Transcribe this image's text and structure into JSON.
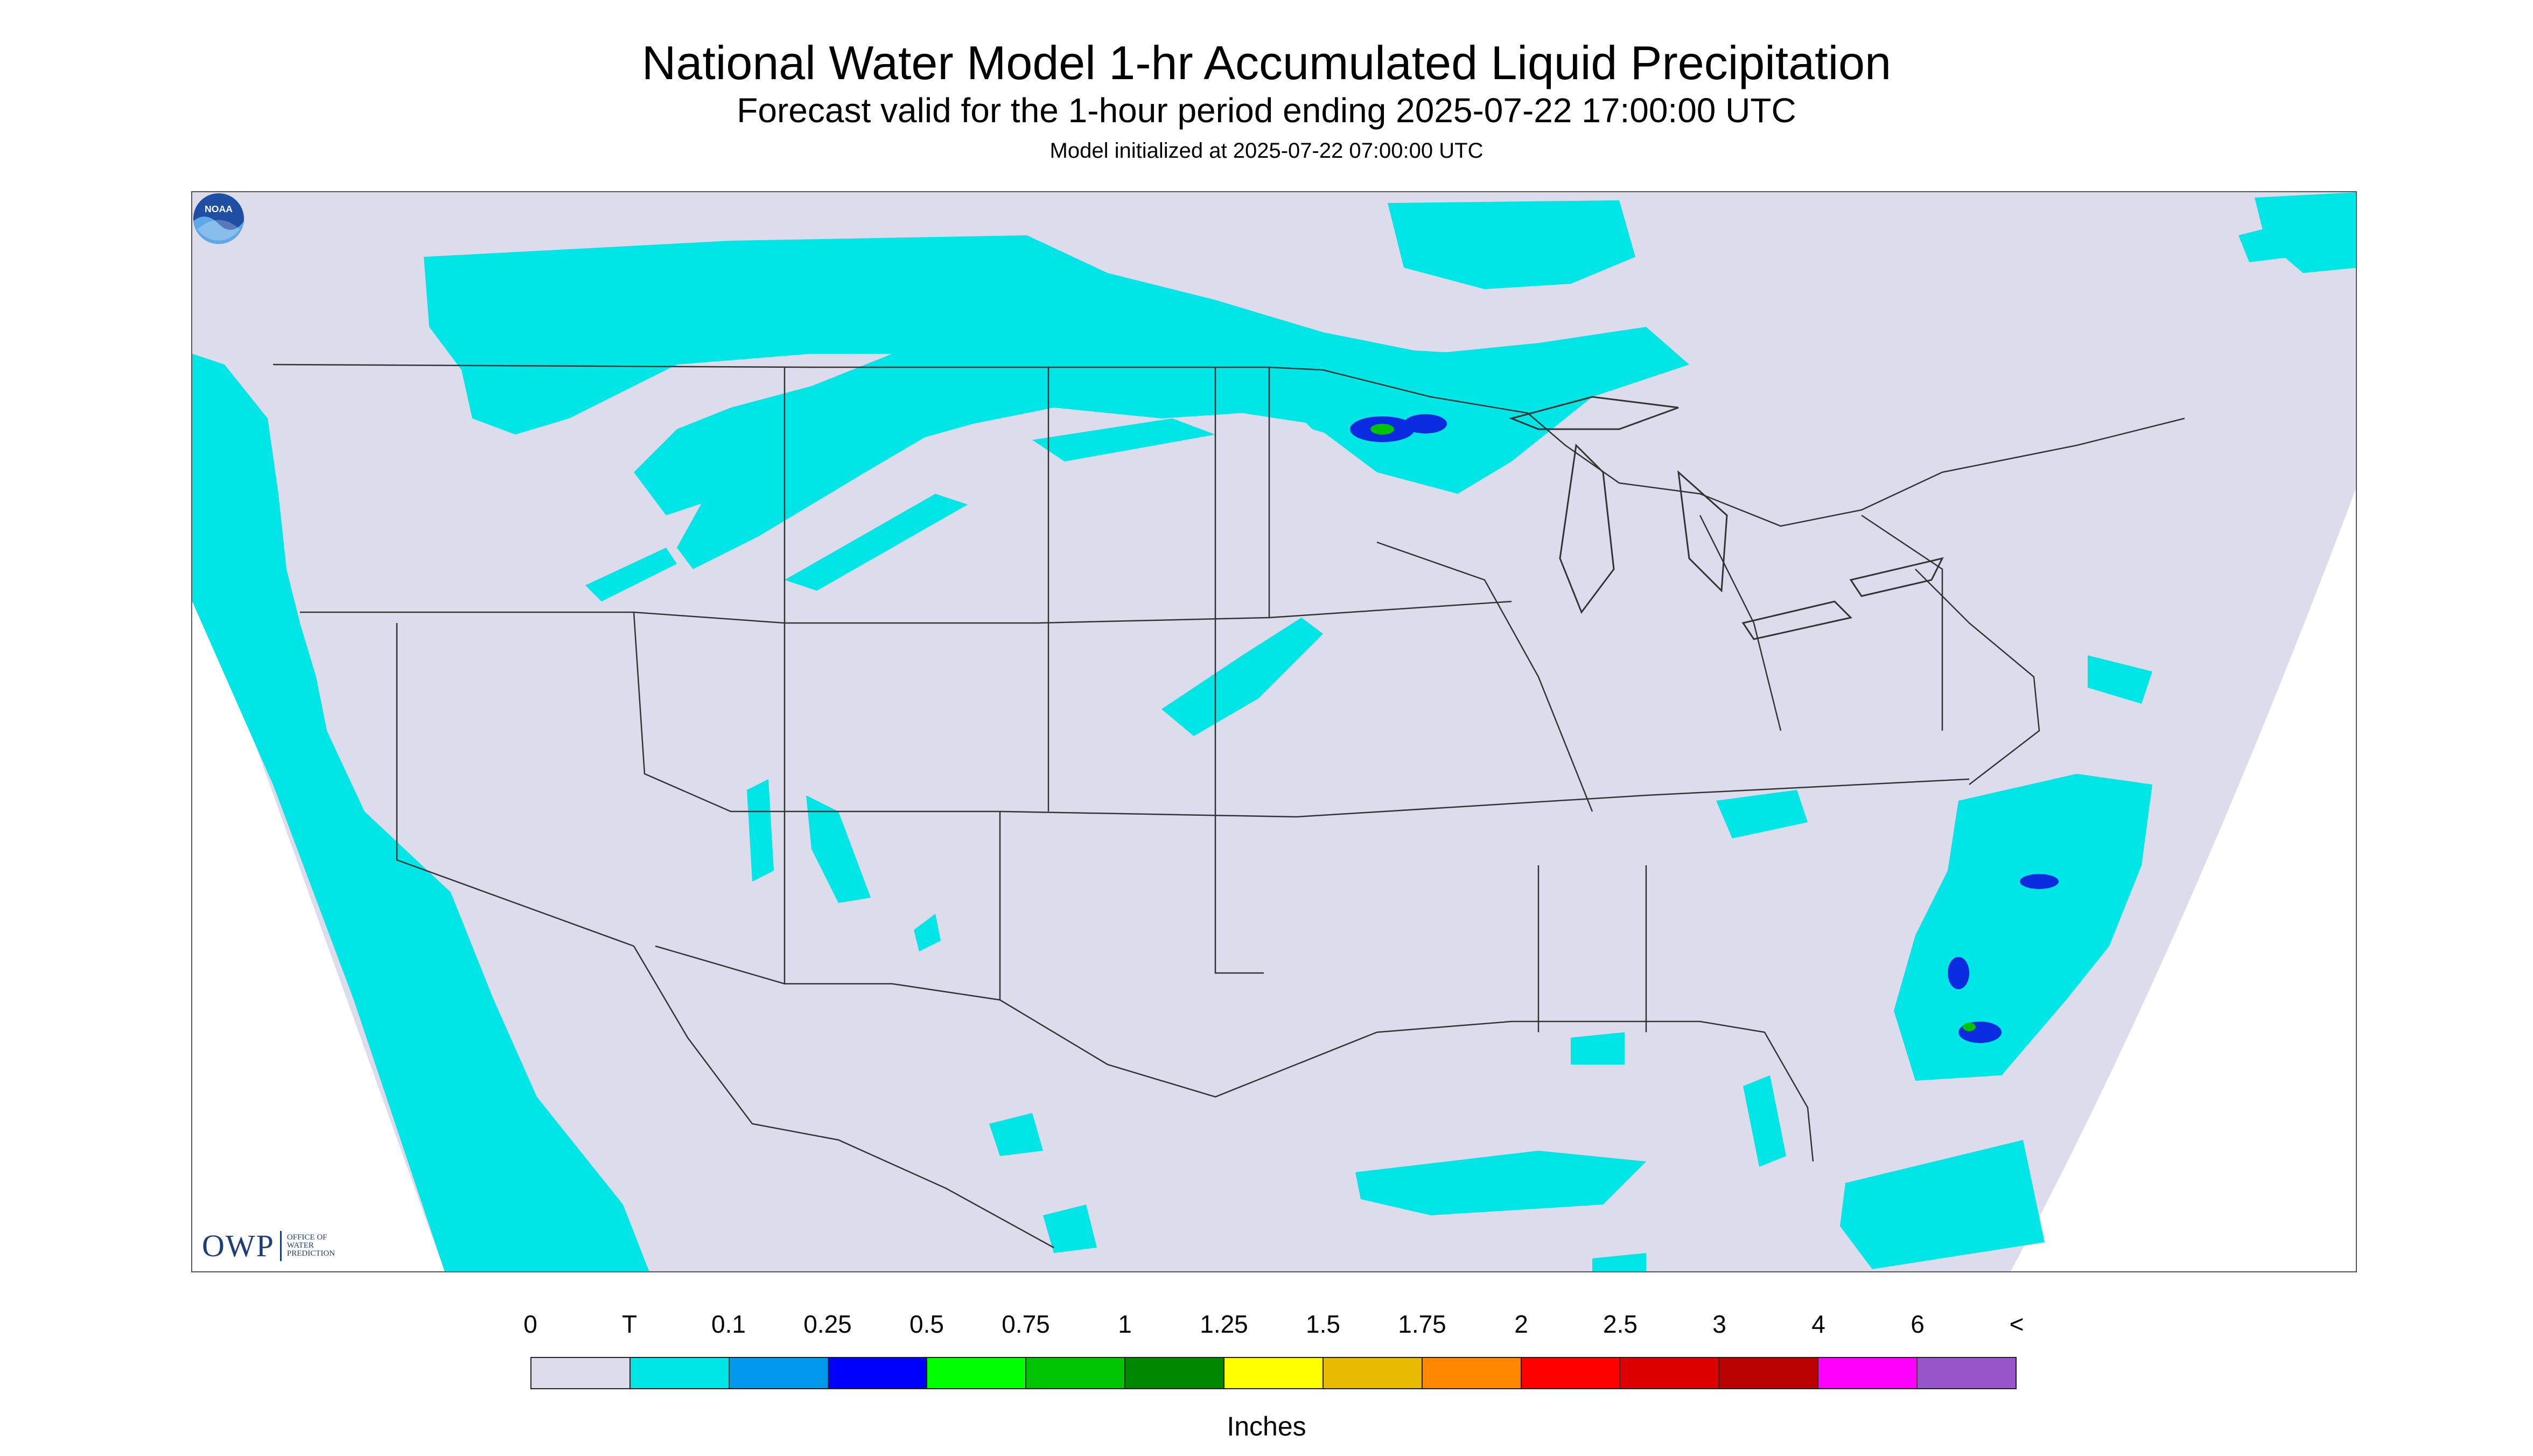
{
  "header": {
    "title": "National Water Model 1-hr Accumulated Liquid Precipitation",
    "subtitle": "Forecast valid for the 1-hour period ending 2025-07-22 17:00:00 UTC",
    "init": "Model initialized at 2025-07-22 07:00:00 UTC"
  },
  "map": {
    "background_color": "#dcdcec",
    "trace_color": "#00e5e5",
    "highlight_color": "#0a2bdf",
    "logo_left": {
      "main": "OWP",
      "lines": [
        "OFFICE OF",
        "WATER",
        "PREDICTION"
      ]
    },
    "logo_right": {
      "icon": "noaa-logo-icon",
      "text": "NOAA"
    }
  },
  "legend": {
    "labels": [
      "0",
      "T",
      "0.1",
      "0.25",
      "0.5",
      "0.75",
      "1",
      "1.25",
      "1.5",
      "1.75",
      "2",
      "2.5",
      "3",
      "4",
      "6",
      "<"
    ],
    "colors": [
      "#dcdcec",
      "#00e5e5",
      "#0099ee",
      "#0000ff",
      "#00ff00",
      "#00c400",
      "#008800",
      "#ffff00",
      "#e6bb00",
      "#ff8800",
      "#ff0000",
      "#dd0000",
      "#bb0000",
      "#ff00ff",
      "#9955cc"
    ],
    "units": "Inches"
  }
}
